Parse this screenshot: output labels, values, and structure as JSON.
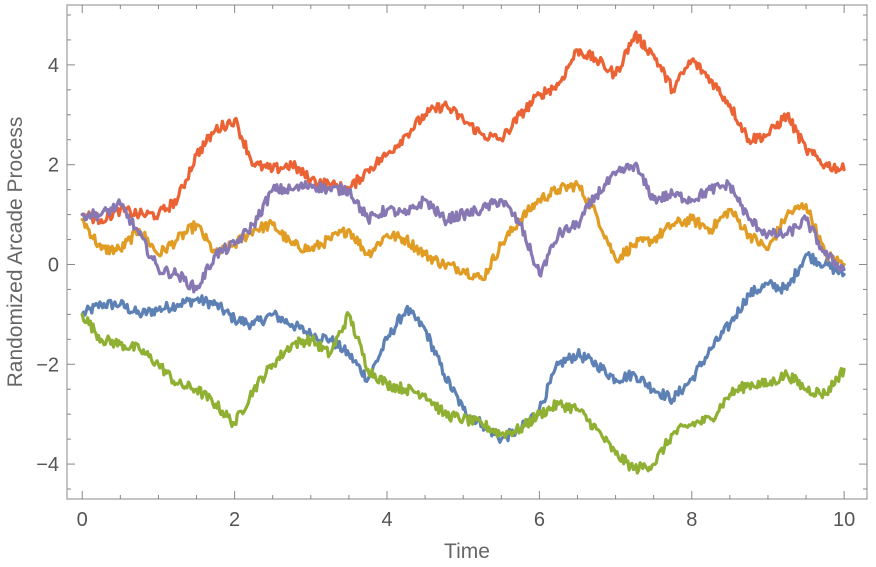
{
  "chart_data": {
    "type": "line",
    "title": "",
    "xlabel": "Time",
    "ylabel": "Randomized Arcade Process",
    "xlim": [
      -0.2,
      10.3
    ],
    "ylim": [
      -4.7,
      5.2
    ],
    "xticks": [
      0,
      2,
      4,
      6,
      8,
      10
    ],
    "yticks": [
      -4,
      -2,
      0,
      2,
      4
    ],
    "xtick_labels": [
      "0",
      "2",
      "4",
      "6",
      "8",
      "10"
    ],
    "ytick_labels": [
      "−4",
      "−2",
      "0",
      "2",
      "4"
    ],
    "grid": false,
    "legend": "none",
    "x": [
      0,
      0.25,
      0.5,
      0.75,
      1.0,
      1.25,
      1.5,
      1.75,
      2.0,
      2.25,
      2.5,
      2.75,
      3.0,
      3.25,
      3.5,
      3.75,
      4.0,
      4.25,
      4.5,
      4.75,
      5.0,
      5.25,
      5.5,
      5.75,
      6.0,
      6.25,
      6.5,
      6.75,
      7.0,
      7.25,
      7.5,
      7.75,
      8.0,
      8.25,
      8.5,
      8.75,
      9.0,
      9.25,
      9.5,
      9.75,
      10.0
    ],
    "series": [
      {
        "color": "#5E81B5",
        "values": [
          -1.0,
          -0.8,
          -0.8,
          -1.0,
          -0.9,
          -0.8,
          -0.7,
          -0.8,
          -1.1,
          -1.2,
          -1.0,
          -1.2,
          -1.4,
          -1.5,
          -1.8,
          -2.3,
          -1.5,
          -0.9,
          -1.3,
          -2.2,
          -2.9,
          -3.2,
          -3.5,
          -3.3,
          -2.9,
          -2.0,
          -1.8,
          -2.0,
          -2.3,
          -2.2,
          -2.5,
          -2.7,
          -2.3,
          -1.7,
          -1.2,
          -0.6,
          -0.4,
          -0.5,
          0.2,
          0.0,
          -0.2
        ]
      },
      {
        "color": "#E19C24",
        "values": [
          0.9,
          0.3,
          0.3,
          0.7,
          0.2,
          0.5,
          0.8,
          0.2,
          0.4,
          0.7,
          0.8,
          0.4,
          0.3,
          0.5,
          0.7,
          0.2,
          0.6,
          0.5,
          0.2,
          0.0,
          -0.1,
          -0.3,
          0.4,
          0.9,
          1.3,
          1.5,
          1.6,
          1.0,
          0.1,
          0.4,
          0.5,
          0.8,
          0.9,
          0.7,
          1.1,
          0.6,
          0.3,
          1.0,
          1.2,
          0.2,
          0.0
        ]
      },
      {
        "color": "#8FB032",
        "values": [
          -1.0,
          -1.5,
          -1.6,
          -1.7,
          -2.0,
          -2.4,
          -2.5,
          -2.8,
          -3.2,
          -2.5,
          -2.0,
          -1.6,
          -1.5,
          -1.8,
          -1.0,
          -2.1,
          -2.4,
          -2.5,
          -2.6,
          -3.0,
          -3.1,
          -3.2,
          -3.4,
          -3.3,
          -3.0,
          -2.8,
          -2.9,
          -3.3,
          -3.8,
          -4.1,
          -4.0,
          -3.4,
          -3.2,
          -3.1,
          -2.6,
          -2.4,
          -2.4,
          -2.2,
          -2.5,
          -2.6,
          -2.1
        ]
      },
      {
        "color": "#EB6235",
        "values": [
          1.0,
          0.9,
          1.1,
          1.0,
          1.0,
          1.3,
          2.2,
          2.7,
          2.9,
          2.0,
          1.9,
          2.0,
          1.7,
          1.6,
          1.5,
          1.9,
          2.2,
          2.6,
          3.0,
          3.2,
          2.9,
          2.6,
          2.5,
          3.0,
          3.4,
          3.6,
          4.3,
          4.1,
          3.8,
          4.6,
          4.2,
          3.5,
          4.1,
          3.7,
          3.2,
          2.5,
          2.6,
          3.0,
          2.3,
          2.0,
          1.9
        ]
      },
      {
        "color": "#8778B3",
        "values": [
          1.0,
          1.0,
          1.2,
          0.6,
          -0.1,
          -0.2,
          -0.5,
          0.2,
          0.4,
          0.8,
          1.5,
          1.5,
          1.6,
          1.5,
          1.5,
          0.9,
          1.1,
          1.0,
          1.3,
          0.9,
          1.0,
          1.1,
          1.3,
          0.8,
          -0.2,
          0.6,
          0.8,
          1.4,
          1.8,
          2.0,
          1.3,
          1.4,
          1.3,
          1.5,
          1.6,
          0.9,
          0.6,
          0.6,
          0.9,
          0.2,
          -0.1
        ]
      }
    ]
  }
}
